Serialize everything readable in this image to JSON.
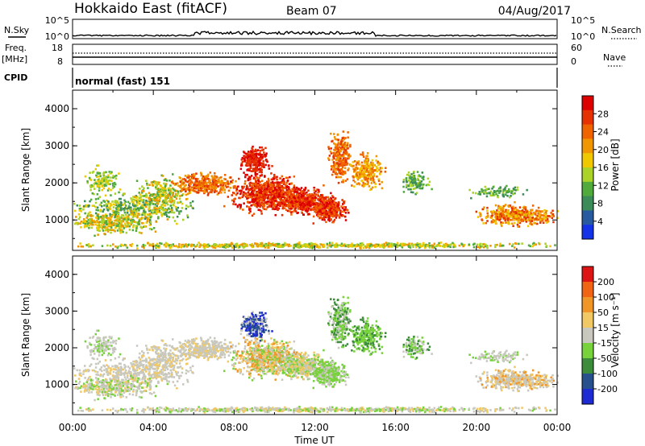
{
  "header": {
    "station": "Hokkaido East (fitACF)",
    "beam": "Beam 07",
    "date": "04/Aug/2017"
  },
  "top_panels": {
    "nsky_label": "N.Sky",
    "nsearch_label": "N.Search",
    "nsky_ticks": [
      "10^5",
      "10^0"
    ],
    "nsearch_ticks": [
      "10^5",
      "10^0"
    ],
    "freq_label": "Freq.",
    "freq_unit": "[MHz]",
    "freq_ticks": [
      "18",
      "8"
    ],
    "nave_label": "Nave",
    "nave_ticks": [
      "60",
      "0"
    ],
    "cpid_label": "CPID",
    "cpid_value": "normal (fast) 151"
  },
  "chart_data": [
    {
      "type": "heatmap",
      "name": "power",
      "ylabel": "Slant Range [km]",
      "xlabel": "",
      "y_ticks": [
        "4000",
        "3000",
        "2000",
        "1000"
      ],
      "y_tick_values": [
        4000,
        3000,
        2000,
        1000
      ],
      "ylim": [
        180,
        4500
      ],
      "xlim": [
        0,
        24
      ],
      "colorbar": {
        "label": "Power [dB]",
        "ticks": [
          "28",
          "24",
          "20",
          "16",
          "12",
          "8",
          "4"
        ],
        "colors": [
          "#1432e6",
          "#285aa0",
          "#3c8c5a",
          "#50aa3c",
          "#aad228",
          "#f0c800",
          "#f09600",
          "#f06400",
          "#e63200",
          "#dc0000"
        ]
      }
    },
    {
      "type": "heatmap",
      "name": "velocity",
      "ylabel": "Slant Range [km]",
      "xlabel": "Time UT",
      "y_ticks": [
        "4000",
        "3000",
        "2000",
        "1000"
      ],
      "y_tick_values": [
        4000,
        3000,
        2000,
        1000
      ],
      "ylim": [
        180,
        4500
      ],
      "xlim": [
        0,
        24
      ],
      "x_ticks": [
        "00:00",
        "04:00",
        "08:00",
        "12:00",
        "16:00",
        "20:00",
        "00:00"
      ],
      "x_tick_values": [
        0,
        4,
        8,
        12,
        16,
        20,
        24
      ],
      "colorbar": {
        "label": "Velocity [m s⁻¹]",
        "ticks": [
          "200",
          "100",
          "50",
          "15",
          "-15",
          "-50",
          "-100",
          "-200"
        ],
        "colors": [
          "#1e2ad2",
          "#28508c",
          "#3c8c3c",
          "#78d23c",
          "#c8c8be",
          "#f0c864",
          "#f09628",
          "#f06414",
          "#dc1414"
        ]
      }
    }
  ]
}
